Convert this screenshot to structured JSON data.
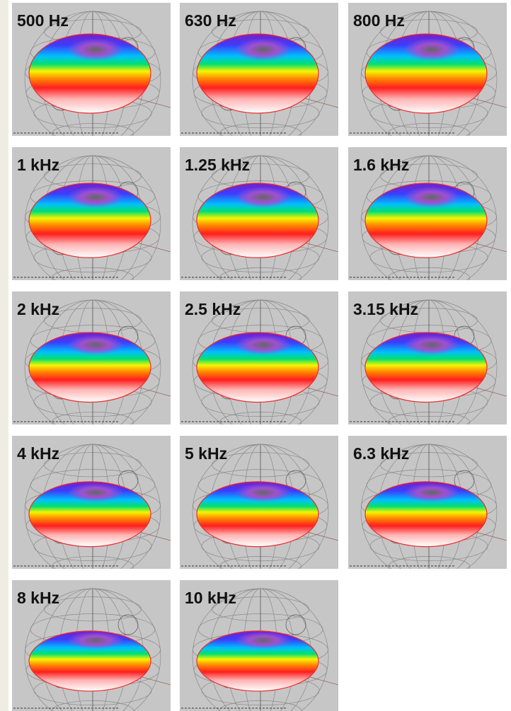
{
  "tiles": [
    {
      "label": "500 Hz"
    },
    {
      "label": "630 Hz"
    },
    {
      "label": "800 Hz"
    },
    {
      "label": "1 kHz"
    },
    {
      "label": "1.25 kHz"
    },
    {
      "label": "1.6 kHz"
    },
    {
      "label": "2 kHz"
    },
    {
      "label": "2.5 kHz"
    },
    {
      "label": "3.15 kHz"
    },
    {
      "label": "4 kHz"
    },
    {
      "label": "5 kHz"
    },
    {
      "label": "6.3 kHz"
    },
    {
      "label": "8 kHz"
    },
    {
      "label": "10 kHz"
    }
  ]
}
